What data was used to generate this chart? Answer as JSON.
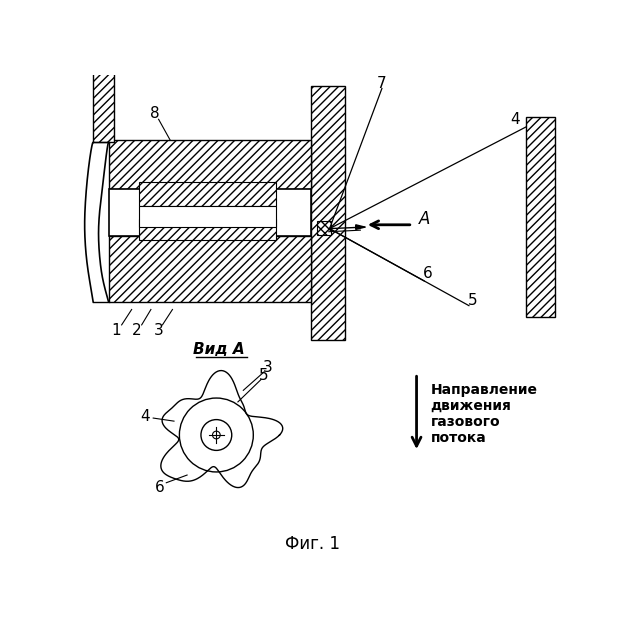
{
  "bg_color": "#ffffff",
  "fig_label": "Фиг. 1",
  "vid_a_label": "Вид A",
  "direction_label": "Направление\nдвижения\nгазового\nпотока",
  "A_label": "A",
  "line_color": "#000000"
}
